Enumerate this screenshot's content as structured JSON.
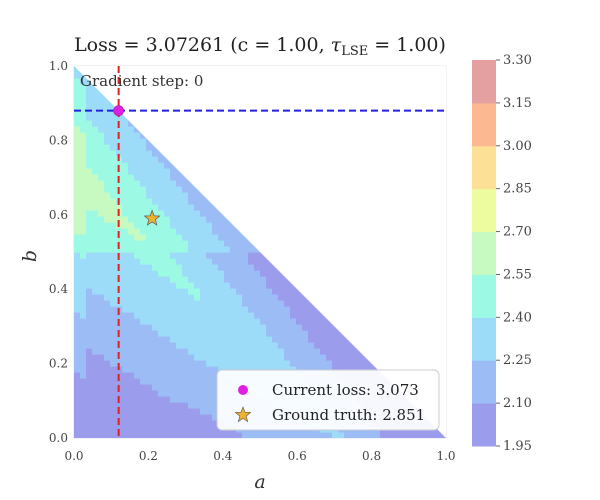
{
  "chart_data": {
    "type": "contour",
    "title": "Loss = 3.07261 (c = 1.00, τ_LSE = 1.00)",
    "title_parts": {
      "main": "Loss = 3.07261 (c = 1.00, ",
      "tau": "τ",
      "sub": "LSE",
      "end": " = 1.00)"
    },
    "xlabel": "a",
    "ylabel": "b",
    "xlim": [
      0.0,
      1.0
    ],
    "ylim": [
      0.0,
      1.0
    ],
    "xticks": [
      "0.0",
      "0.2",
      "0.4",
      "0.6",
      "0.8",
      "1.0"
    ],
    "yticks": [
      "0.0",
      "0.2",
      "0.4",
      "0.6",
      "0.8",
      "1.0"
    ],
    "annotation": "Gradient step: 0",
    "grid": true,
    "valid_region": "a + b <= 1 (upper-left triangle)",
    "colorbar": {
      "ticks": [
        "1.95",
        "2.10",
        "2.25",
        "2.40",
        "2.55",
        "2.70",
        "2.85",
        "3.00",
        "3.15",
        "3.30"
      ],
      "levels": [
        1.95,
        2.1,
        2.25,
        2.4,
        2.55,
        2.7,
        2.85,
        3.0,
        3.15,
        3.3
      ],
      "colors": [
        "#9c9cec",
        "#9cbcf6",
        "#9cdcf8",
        "#9cfae4",
        "#c6fac0",
        "#eefca0",
        "#fce096",
        "#fcb890",
        "#e4a0a0"
      ]
    },
    "current_point": {
      "a": 0.12,
      "b": 0.88,
      "color": "#e020e0"
    },
    "ground_truth_point": {
      "a": 0.21,
      "b": 0.59,
      "color": "#f0b030"
    },
    "crosshair": {
      "vertical_a": 0.12,
      "horizontal_b": 0.88,
      "vertical_color": "#e02020",
      "horizontal_color": "#2020e0"
    },
    "legend": {
      "position": "bottom-right",
      "entries": [
        {
          "label": "Current loss: 3.073",
          "marker": "circle",
          "color": "#e020e0"
        },
        {
          "label": "Ground truth: 2.851",
          "marker": "star",
          "color": "#f0b030"
        }
      ]
    }
  }
}
